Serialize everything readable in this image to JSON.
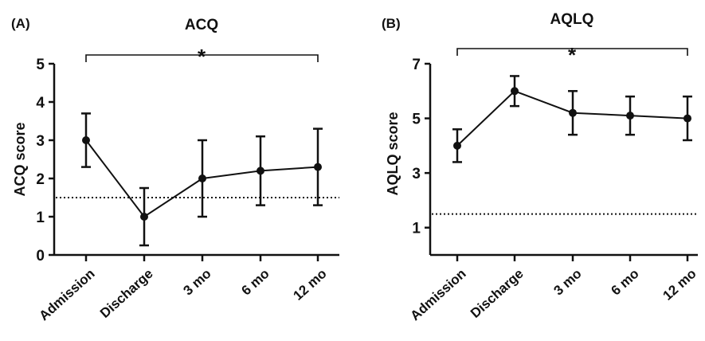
{
  "chart_data": [
    {
      "type": "line",
      "panel_label": "(A)",
      "title": "ACQ",
      "significance": "*",
      "ylabel": "ACQ score",
      "categories": [
        "Admission",
        "Discharge",
        "3 mo",
        "6 mo",
        "12 mo"
      ],
      "ylim": [
        0,
        5
      ],
      "yticks": [
        0,
        1,
        2,
        3,
        4,
        5
      ],
      "series": [
        {
          "values": [
            3.0,
            1.0,
            2.0,
            2.2,
            2.3
          ],
          "err_low": [
            2.3,
            0.25,
            1.0,
            1.3,
            1.3
          ],
          "err_high": [
            3.7,
            1.75,
            3.0,
            3.1,
            3.3
          ]
        }
      ],
      "reference_line": 1.5,
      "bracket": [
        "Admission",
        "12 mo"
      ]
    },
    {
      "type": "line",
      "panel_label": "(B)",
      "title": "AQLQ",
      "significance": "*",
      "ylabel": "AQLQ score",
      "categories": [
        "Admission",
        "Discharge",
        "3 mo",
        "6 mo",
        "12 mo"
      ],
      "ylim": [
        0,
        7
      ],
      "yticks": [
        1,
        3,
        5,
        7
      ],
      "series": [
        {
          "values": [
            4.0,
            6.0,
            5.2,
            5.1,
            5.0
          ],
          "err_low": [
            3.4,
            5.45,
            4.4,
            4.4,
            4.2
          ],
          "err_high": [
            4.6,
            6.55,
            6.0,
            5.8,
            5.8
          ]
        }
      ],
      "reference_line": 1.5,
      "bracket": [
        "Admission",
        "12 mo"
      ]
    }
  ]
}
